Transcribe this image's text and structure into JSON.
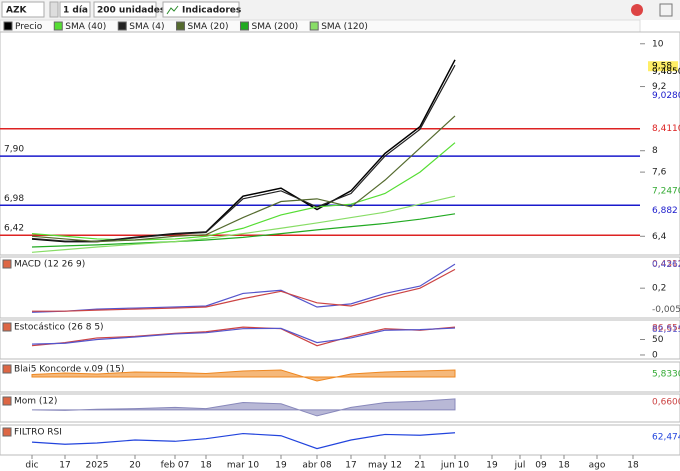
{
  "toolbar": {
    "symbol": "AZK",
    "period": "1 día",
    "units": "200 unidades",
    "indicators": "Indicadores"
  },
  "chart_data": [
    {
      "type": "line",
      "title": "Precio",
      "categories": [
        "dic",
        "17",
        "2025",
        "20",
        "feb 07",
        "18",
        "mar 10",
        "19",
        "abr 08",
        "17",
        "may 12",
        "21",
        "jun 10",
        "19",
        "jul",
        "09",
        "18",
        "ago",
        "18"
      ],
      "ylim": [
        6.05,
        10.22
      ],
      "yticks": [
        10,
        {
          "value": 9.2,
          "label": "9,2"
        },
        8,
        {
          "value": 7.6,
          "label": "7,6"
        },
        {
          "value": 6.4,
          "label": "6,4"
        }
      ],
      "series": [
        {
          "name": "Precio",
          "color": "#000000",
          "values": [
            6.35,
            6.3,
            6.3,
            6.38,
            6.45,
            6.48,
            7.15,
            7.3,
            6.9,
            7.25,
            7.95,
            8.45,
            9.7,
            null,
            null,
            null,
            null,
            null,
            null
          ]
        },
        {
          "name": "SMA (40)",
          "color": "#55dd33",
          "values": [
            6.45,
            6.4,
            6.35,
            6.33,
            6.35,
            6.4,
            6.55,
            6.8,
            6.95,
            7.0,
            7.2,
            7.6,
            8.15,
            null,
            null,
            null,
            null,
            null,
            null
          ]
        },
        {
          "name": "SMA (4)",
          "color": "#222222",
          "values": [
            6.36,
            6.31,
            6.31,
            6.37,
            6.44,
            6.47,
            7.1,
            7.25,
            6.95,
            7.2,
            7.9,
            8.4,
            9.6,
            null,
            null,
            null,
            null,
            null,
            null
          ]
        },
        {
          "name": "SMA (20)",
          "color": "#556b2f",
          "values": [
            6.4,
            6.35,
            6.3,
            6.33,
            6.4,
            6.43,
            6.75,
            7.05,
            7.1,
            6.95,
            7.45,
            8.05,
            8.65,
            null,
            null,
            null,
            null,
            null,
            null
          ]
        },
        {
          "name": "SMA (200)",
          "color": "#22aa22",
          "values": [
            6.2,
            6.22,
            6.24,
            6.27,
            6.3,
            6.33,
            6.38,
            6.45,
            6.52,
            6.58,
            6.64,
            6.72,
            6.82,
            null,
            null,
            null,
            null,
            null,
            null
          ]
        },
        {
          "name": "SMA (120)",
          "color": "#88dd66",
          "values": [
            6.1,
            6.15,
            6.2,
            6.25,
            6.3,
            6.36,
            6.45,
            6.55,
            6.65,
            6.75,
            6.85,
            7.0,
            7.15,
            null,
            null,
            null,
            null,
            null,
            null
          ]
        }
      ],
      "hlines": [
        {
          "value": 8.411,
          "color": "#dd2222"
        },
        {
          "value": 7.9,
          "label": "7,90",
          "color": "#1a1acc"
        },
        {
          "value": 6.98,
          "label": "6,98",
          "color": "#1a1acc"
        },
        {
          "value": 6.42,
          "label": "6,42",
          "color": "#dd2222"
        }
      ],
      "right_labels": [
        {
          "value": 9.58,
          "label": "9,58",
          "color": "#000000",
          "background": "#ffee66"
        },
        {
          "value": 9.485,
          "label": "9,4850",
          "color": "#000000"
        },
        {
          "value": 9.028,
          "label": "9,0280",
          "color": "#1a1acc"
        },
        {
          "value": 8.411,
          "label": "8,4110",
          "color": "#dd2222"
        },
        {
          "value": 7.247,
          "label": "7,2470",
          "color": "#33aa33"
        },
        {
          "value": 6.882,
          "label": "6,882",
          "color": "#1a1acc"
        }
      ]
    },
    {
      "type": "line",
      "title": "MACD (12 26 9)",
      "ylim": [
        -0.085,
        0.498
      ],
      "yticks": [
        {
          "value": 0.2,
          "label": "0,2"
        }
      ],
      "series": [
        {
          "color": "#5555cc",
          "values": [
            -0.03,
            -0.02,
            0.0,
            0.01,
            0.02,
            0.03,
            0.15,
            0.18,
            0.02,
            0.05,
            0.15,
            0.22,
            0.43,
            null,
            null,
            null,
            null,
            null,
            null
          ]
        },
        {
          "color": "#cc4444",
          "values": [
            -0.02,
            -0.02,
            -0.01,
            0.0,
            0.01,
            0.02,
            0.1,
            0.17,
            0.06,
            0.03,
            0.12,
            0.2,
            0.38,
            null,
            null,
            null,
            null,
            null,
            null
          ]
        }
      ],
      "right_labels": [
        {
          "value": 0.4312,
          "label": "0,4312",
          "color": "#cc4444"
        },
        {
          "value": 0.4262,
          "label": "0,4262",
          "color": "#5555cc"
        },
        {
          "value": -0.005,
          "label": "-0,0050",
          "color": "#555555"
        }
      ]
    },
    {
      "type": "line",
      "title": "Estocástico (26 8 5)",
      "ylim": [
        -13,
        113
      ],
      "yticks": [
        50,
        0
      ],
      "series": [
        {
          "color": "#cc4444",
          "values": [
            30,
            40,
            55,
            60,
            70,
            75,
            90,
            85,
            30,
            60,
            85,
            80,
            90,
            null,
            null,
            null,
            null,
            null,
            null
          ]
        },
        {
          "color": "#5555cc",
          "values": [
            35,
            38,
            50,
            58,
            68,
            72,
            85,
            86,
            40,
            55,
            80,
            82,
            87,
            null,
            null,
            null,
            null,
            null,
            null
          ]
        }
      ],
      "right_labels": [
        {
          "value": 86.654,
          "label": "86,654",
          "color": "#cc4444"
        },
        {
          "value": 82.515,
          "label": "82,515",
          "color": "#5555cc"
        }
      ]
    },
    {
      "type": "area",
      "title": "Blai5 Koncorde v.09 (15)",
      "ylim": [
        -30,
        30
      ],
      "series": [
        {
          "color": "#ee8822",
          "values": [
            5,
            8,
            6,
            10,
            9,
            7,
            12,
            14,
            -8,
            6,
            10,
            12,
            14,
            null,
            null,
            null,
            null,
            null,
            null
          ]
        }
      ],
      "right_labels": [
        {
          "value": 5.833,
          "label": "5,8330",
          "color": "#33aa33"
        }
      ]
    },
    {
      "type": "area",
      "title": "Mom (12)",
      "ylim": [
        -1.0,
        1.3
      ],
      "series": [
        {
          "color": "#8888bb",
          "values": [
            0.0,
            -0.05,
            0.05,
            0.1,
            0.2,
            0.1,
            0.6,
            0.5,
            -0.5,
            0.2,
            0.6,
            0.7,
            0.9,
            null,
            null,
            null,
            null,
            null,
            null
          ]
        }
      ],
      "right_labels": [
        {
          "value": 0.66,
          "label": "0,6600",
          "color": "#cc4444"
        }
      ]
    },
    {
      "type": "line",
      "title": "FILTRO RSI",
      "ylim": [
        20,
        90
      ],
      "series": [
        {
          "color": "#2244dd",
          "values": [
            50,
            45,
            48,
            55,
            52,
            58,
            70,
            65,
            35,
            55,
            68,
            66,
            72,
            null,
            null,
            null,
            null,
            null,
            null
          ]
        }
      ],
      "right_labels": [
        {
          "value": 62.474,
          "label": "62,474",
          "color": "#2244dd"
        }
      ]
    }
  ]
}
